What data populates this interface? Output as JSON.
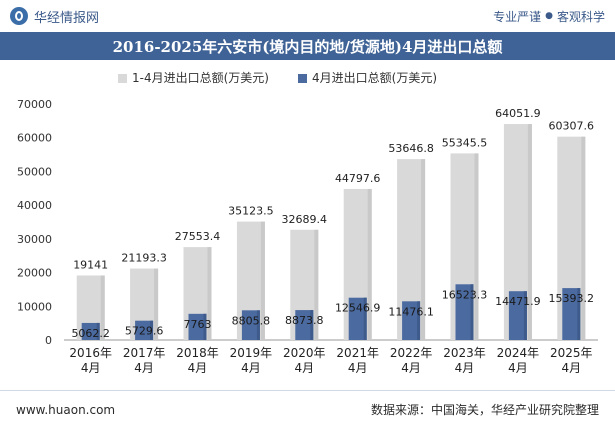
{
  "header": {
    "brand_name": "华经情报网",
    "tagline_left": "专业严谨",
    "tagline_sep": "●",
    "tagline_right": "客观科学"
  },
  "colors": {
    "title_bg": "#3f6396",
    "series_total": "#d9d9d9",
    "series_april": "#4a6aa0"
  },
  "chart_data": {
    "type": "bar",
    "title": "2016-2025年六安市(境内目的地/货源地)4月进出口总额",
    "categories": [
      "2016年\n4月",
      "2017年\n4月",
      "2018年\n4月",
      "2019年\n4月",
      "2020年\n4月",
      "2021年\n4月",
      "2022年\n4月",
      "2023年\n4月",
      "2024年\n4月",
      "2025年\n4月"
    ],
    "series": [
      {
        "name": "1-4月进出口总额(万美元)",
        "values": [
          19141,
          21193.3,
          27553.4,
          35123.5,
          32689.4,
          44797.6,
          53646.8,
          55345.5,
          64051.9,
          60307.6
        ],
        "labels": [
          "19141",
          "21193.3",
          "27553.4",
          "35123.5",
          "32689.4",
          "44797.6",
          "53646.8",
          "55345.5",
          "64051.9",
          "60307.6"
        ]
      },
      {
        "name": "4月进出口总额(万美元)",
        "values": [
          5062.2,
          5729.6,
          7763,
          8805.8,
          8873.8,
          12546.9,
          11476.1,
          16523.3,
          14471.9,
          15393.2
        ],
        "labels": [
          "5062.2",
          "5729.6",
          "7763",
          "8805.8",
          "8873.8",
          "12546.9",
          "11476.1",
          "16523.3",
          "14471.9",
          "15393.2"
        ]
      }
    ],
    "ylim": [
      0,
      70000
    ],
    "yticks": [
      0,
      10000,
      20000,
      30000,
      40000,
      50000,
      60000,
      70000
    ],
    "legend_position": "top-left",
    "grid": false
  },
  "footer": {
    "website": "www.huaon.com",
    "source": "数据来源：中国海关，华经产业研究院整理"
  }
}
